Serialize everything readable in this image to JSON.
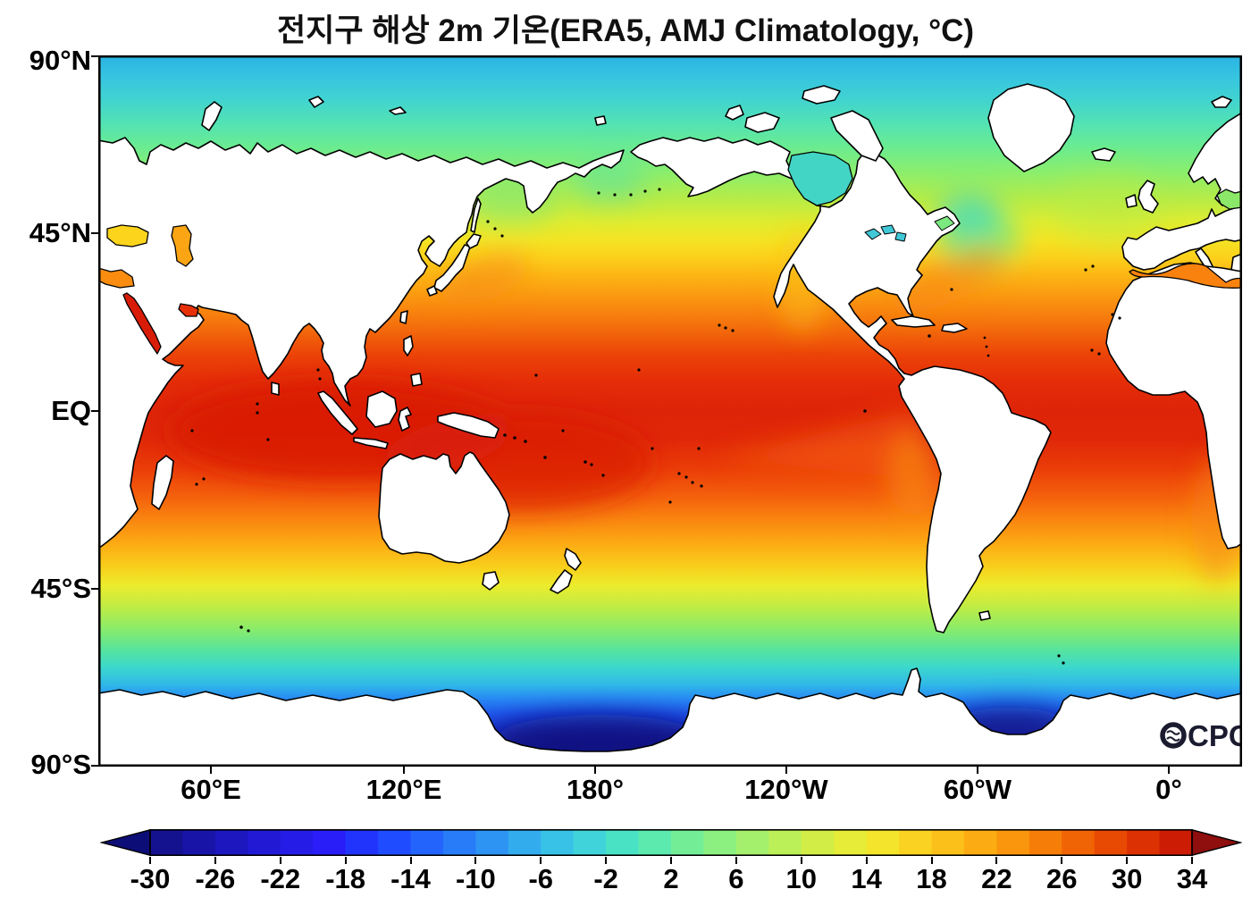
{
  "title": "전지구 해상 2m 기온(ERA5, AMJ Climatology, °C)",
  "logo": {
    "text": "OCPC"
  },
  "axes": {
    "lat_ticks": [
      "90°N",
      "45°N",
      "EQ",
      "45°S",
      "90°S"
    ],
    "lon_ticks": [
      "60°E",
      "120°E",
      "180°",
      "120°W",
      "60°W",
      "0°"
    ]
  },
  "colorbar": {
    "min": -30,
    "max": 34,
    "segment_step": 2,
    "tick_step": 4,
    "extend": "both",
    "tick_labels": [
      "-30",
      "-26",
      "-22",
      "-18",
      "-14",
      "-10",
      "-6",
      "-2",
      "2",
      "6",
      "10",
      "14",
      "18",
      "22",
      "26",
      "30",
      "34"
    ],
    "left_arrow_color": "#0d0d78",
    "right_arrow_color": "#8f0e0e",
    "segment_colors": [
      "#14128f",
      "#1814a8",
      "#1c17bf",
      "#2119d4",
      "#261ce8",
      "#2a1ef8",
      "#2134fc",
      "#204cff",
      "#2364fc",
      "#287cf8",
      "#2d94f4",
      "#33acee",
      "#38c2e8",
      "#40d4da",
      "#4ae2c4",
      "#5ceaae",
      "#74ee96",
      "#8cf080",
      "#a4f06c",
      "#bcf058",
      "#d2ee46",
      "#e6ec38",
      "#f4e42c",
      "#fad322",
      "#fcc01a",
      "#fcac12",
      "#fa960d",
      "#f67e08",
      "#f06405",
      "#e84a04",
      "#dc3103",
      "#cc1c04"
    ]
  },
  "palette": {
    "land_color": "#ffffff",
    "coastline_color": "#000000",
    "regional_seas": {
      "black_sea": "#fcd41c",
      "caspian_sea": "#fba514",
      "mediterranean": "#f9820e",
      "eastern_mediterranean": "#fa8c10",
      "red_sea": "#d81c08",
      "persian_gulf": "#e83008",
      "hudson_bay": "#42d4c4",
      "baltic_sea": "#8ce868",
      "great_lakes": "#40c8d8",
      "gulf_st_lawrence": "#7ce880"
    },
    "ocean_zonal_gradient": [
      {
        "off": "0%",
        "color": "#2ab4e4"
      },
      {
        "off": "3%",
        "color": "#36c4e0"
      },
      {
        "off": "6%",
        "color": "#40d2d2"
      },
      {
        "off": "9.5%",
        "color": "#52e2b4"
      },
      {
        "off": "13%",
        "color": "#6cec90"
      },
      {
        "off": "16.5%",
        "color": "#8cee6c"
      },
      {
        "off": "20%",
        "color": "#b4ec48"
      },
      {
        "off": "23.5%",
        "color": "#e0ec30"
      },
      {
        "off": "26%",
        "color": "#f4e424"
      },
      {
        "off": "28.5%",
        "color": "#fcd01c"
      },
      {
        "off": "31%",
        "color": "#fcb414"
      },
      {
        "off": "34.5%",
        "color": "#fa9210"
      },
      {
        "off": "38%",
        "color": "#f4700c"
      },
      {
        "off": "42%",
        "color": "#ec4408"
      },
      {
        "off": "46%",
        "color": "#e42c08"
      },
      {
        "off": "50%",
        "color": "#de2408"
      },
      {
        "off": "54%",
        "color": "#e02808"
      },
      {
        "off": "58%",
        "color": "#ea3c08"
      },
      {
        "off": "62%",
        "color": "#f4600c"
      },
      {
        "off": "65.5%",
        "color": "#fa8810"
      },
      {
        "off": "69%",
        "color": "#fcae14"
      },
      {
        "off": "72%",
        "color": "#f8d01c"
      },
      {
        "off": "74.5%",
        "color": "#ecec2c"
      },
      {
        "off": "77.5%",
        "color": "#c0ec44"
      },
      {
        "off": "80.5%",
        "color": "#8cec68"
      },
      {
        "off": "83.5%",
        "color": "#58e49c"
      },
      {
        "off": "86%",
        "color": "#3cd8cc"
      },
      {
        "off": "88.5%",
        "color": "#30b8e8"
      },
      {
        "off": "90.5%",
        "color": "#2888f4"
      },
      {
        "off": "92.5%",
        "color": "#2058ec"
      },
      {
        "off": "95%",
        "color": "#1c34cc"
      },
      {
        "off": "97.5%",
        "color": "#161ea8"
      },
      {
        "off": "100%",
        "color": "#121288"
      }
    ]
  },
  "chart_data": {
    "type": "heatmap",
    "subtype": "filled-contour world map",
    "title": "전지구 해상 2m 기온(ERA5, AMJ Climatology, °C)",
    "variable": "2 m air temperature over ocean (land masked white)",
    "units": "°C",
    "source_label": "ERA5",
    "period_label": "AMJ Climatology",
    "projection": "equirectangular, Pacific-centered (left edge ≈ 25°E)",
    "x_axis": {
      "ticks": [
        "60°E",
        "120°E",
        "180°",
        "120°W",
        "60°W",
        "0°"
      ],
      "range_deg_east": [
        25,
        385
      ]
    },
    "y_axis": {
      "ticks": [
        "90°N",
        "45°N",
        "EQ",
        "45°S",
        "90°S"
      ],
      "range_lat": [
        -90,
        90
      ]
    },
    "colorbar": {
      "min": -30,
      "max": 34,
      "contour_interval": 2,
      "label_step": 4,
      "extend": "both"
    },
    "zonal_mean_temperature_c": [
      {
        "lat": 90,
        "t": -7
      },
      {
        "lat": 80,
        "t": -6
      },
      {
        "lat": 70,
        "t": -2
      },
      {
        "lat": 60,
        "t": 3
      },
      {
        "lat": 50,
        "t": 8
      },
      {
        "lat": 45,
        "t": 11
      },
      {
        "lat": 40,
        "t": 14
      },
      {
        "lat": 30,
        "t": 21
      },
      {
        "lat": 20,
        "t": 26
      },
      {
        "lat": 10,
        "t": 28
      },
      {
        "lat": 0,
        "t": 29
      },
      {
        "lat": -10,
        "t": 28
      },
      {
        "lat": -20,
        "t": 25
      },
      {
        "lat": -30,
        "t": 20
      },
      {
        "lat": -40,
        "t": 14
      },
      {
        "lat": -45,
        "t": 11
      },
      {
        "lat": -50,
        "t": 8
      },
      {
        "lat": -60,
        "t": 2
      },
      {
        "lat": -65,
        "t": -1
      },
      {
        "lat": -70,
        "t": -8
      },
      {
        "lat": -75,
        "t": -18
      },
      {
        "lat": -80,
        "t": -27
      }
    ],
    "features": [
      "warmest water (≥ 30°C) in Arabian Sea, Bay of Bengal and western Pacific warm pool",
      "equatorial cool tongue extends west off Peru",
      "cold Labrador Current wedge in NW Atlantic; warm Gulf Stream front",
      "coldest values (< -28°C) in Ross Sea and Weddell Sea embayments near Antarctica",
      "regional seas visible: Mediterranean, Black, Caspian, Red Sea, Persian Gulf, Hudson Bay, Baltic",
      "land areas masked white with black coastlines"
    ]
  }
}
